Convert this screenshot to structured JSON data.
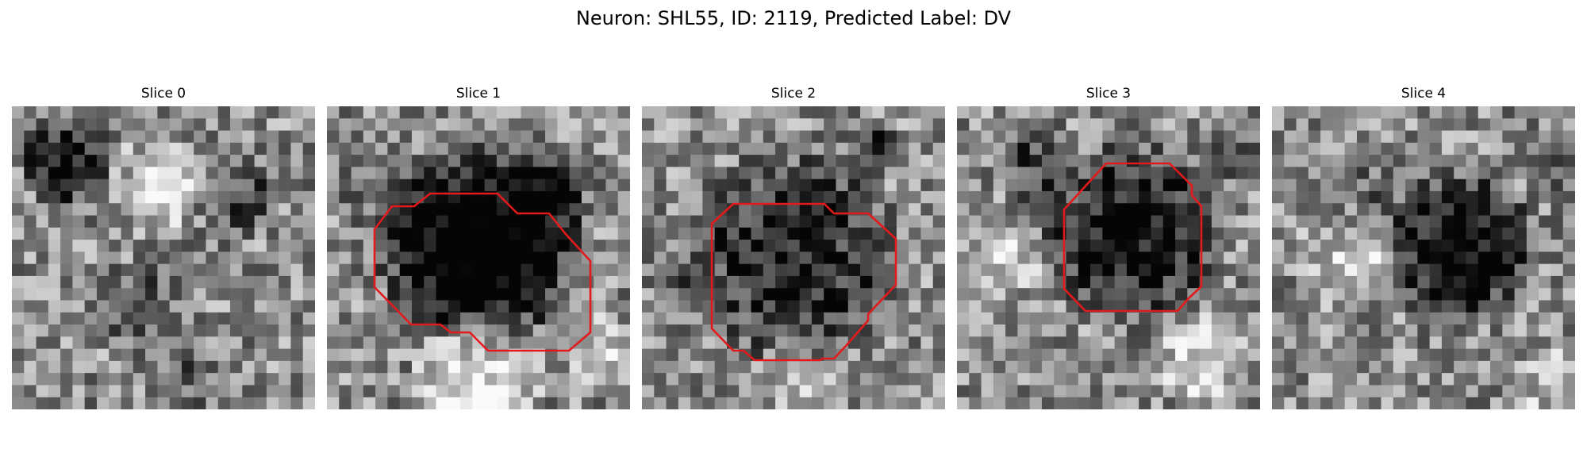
{
  "figure": {
    "title": "Neuron: SHL55, ID: 2119, Predicted Label: DV",
    "contour_color": "#e31a1c",
    "colormap": "gray"
  },
  "panels": [
    {
      "title": "Slice 0",
      "has_contour": false
    },
    {
      "title": "Slice 1",
      "has_contour": true
    },
    {
      "title": "Slice 2",
      "has_contour": true
    },
    {
      "title": "Slice 3",
      "has_contour": true
    },
    {
      "title": "Slice 4",
      "has_contour": false
    }
  ]
}
